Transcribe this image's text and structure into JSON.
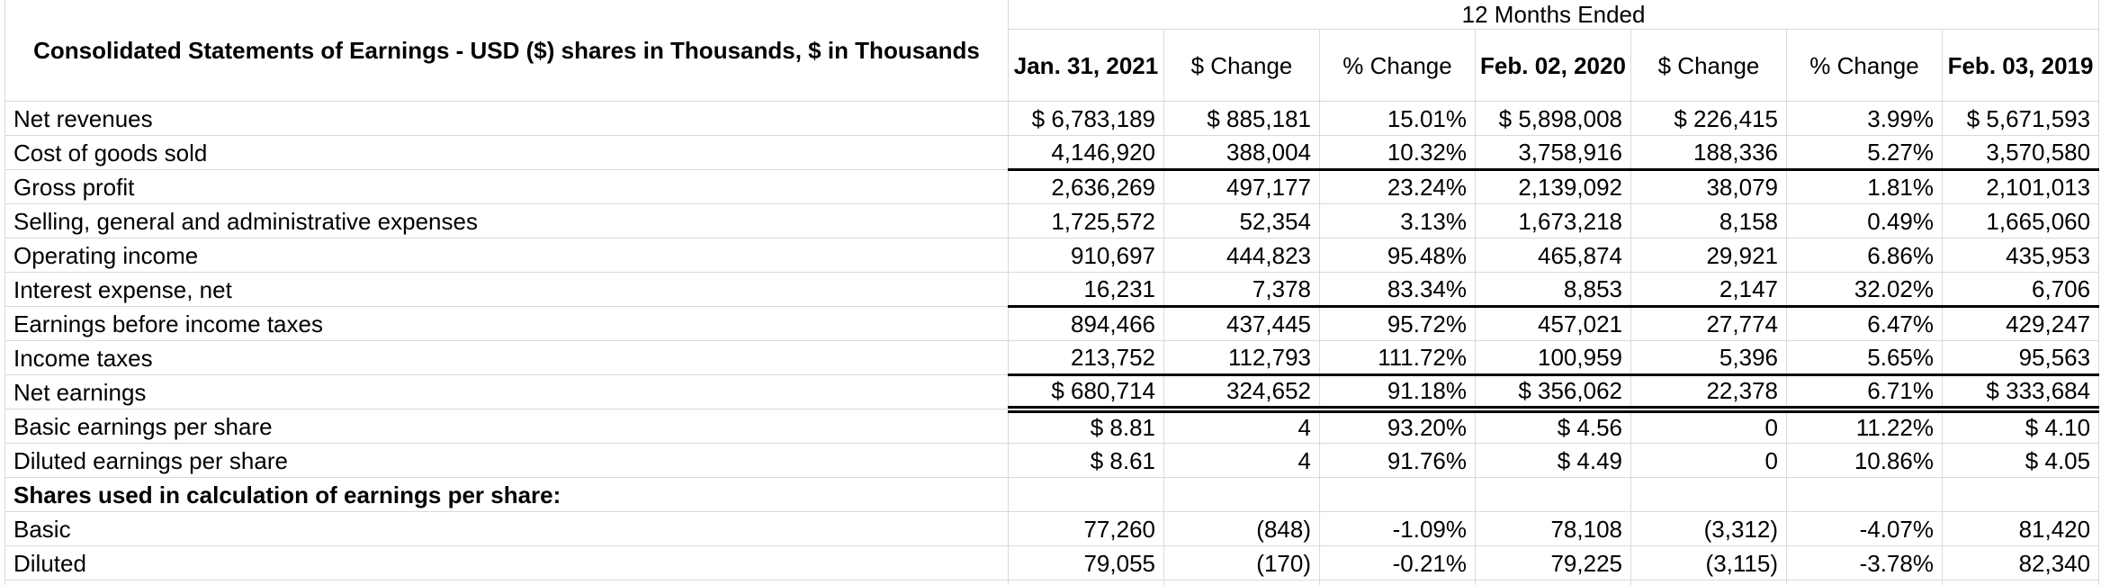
{
  "table": {
    "title": "Consolidated Statements of Earnings - USD ($) shares in Thousands, $ in Thousands",
    "period_header": "12 Months Ended",
    "columns": [
      "Jan. 31, 2021",
      "$ Change",
      "% Change",
      "Feb. 02,\n2020",
      "$ Change",
      "% Change",
      "Feb. 03,\n2019"
    ],
    "column_bold": [
      true,
      false,
      false,
      true,
      false,
      false,
      true
    ],
    "rows": [
      {
        "label": "Net revenues",
        "style": "normal",
        "values": [
          "$ 6,783,189",
          "$ 885,181",
          "15.01%",
          "$ 5,898,008",
          "$ 226,415",
          "3.99%",
          "$ 5,671,593"
        ]
      },
      {
        "label": "Cost of goods sold",
        "style": "thick-bottom",
        "values": [
          "4,146,920",
          "388,004",
          "10.32%",
          "3,758,916",
          "188,336",
          "5.27%",
          "3,570,580"
        ]
      },
      {
        "label": "Gross profit",
        "style": "normal",
        "values": [
          "2,636,269",
          "497,177",
          "23.24%",
          "2,139,092",
          "38,079",
          "1.81%",
          "2,101,013"
        ]
      },
      {
        "label": "Selling, general and administrative expenses",
        "style": "normal",
        "values": [
          "1,725,572",
          "52,354",
          "3.13%",
          "1,673,218",
          "8,158",
          "0.49%",
          "1,665,060"
        ]
      },
      {
        "label": "Operating income",
        "style": "normal",
        "values": [
          "910,697",
          "444,823",
          "95.48%",
          "465,874",
          "29,921",
          "6.86%",
          "435,953"
        ]
      },
      {
        "label": "Interest expense, net",
        "style": "thick-bottom",
        "values": [
          "16,231",
          "7,378",
          "83.34%",
          "8,853",
          "2,147",
          "32.02%",
          "6,706"
        ]
      },
      {
        "label": "Earnings before income taxes",
        "style": "normal",
        "values": [
          "894,466",
          "437,445",
          "95.72%",
          "457,021",
          "27,774",
          "6.47%",
          "429,247"
        ]
      },
      {
        "label": "Income taxes",
        "style": "thick-bottom",
        "values": [
          "213,752",
          "112,793",
          "111.72%",
          "100,959",
          "5,396",
          "5.65%",
          "95,563"
        ]
      },
      {
        "label": "Net earnings",
        "style": "double-bottom",
        "values": [
          "$ 680,714",
          "324,652",
          "91.18%",
          "$ 356,062",
          "22,378",
          "6.71%",
          "$ 333,684"
        ]
      },
      {
        "label": "Basic earnings per share",
        "style": "normal",
        "values": [
          "$ 8.81",
          "4",
          "93.20%",
          "$ 4.56",
          "0",
          "11.22%",
          "$ 4.10"
        ]
      },
      {
        "label": "Diluted earnings per share",
        "style": "normal",
        "values": [
          "$ 8.61",
          "4",
          "91.76%",
          "$ 4.49",
          "0",
          "10.86%",
          "$ 4.05"
        ]
      },
      {
        "label": "Shares used in calculation of earnings per share:",
        "style": "section-header",
        "values": [
          "",
          "",
          "",
          "",
          "",
          "",
          ""
        ]
      },
      {
        "label": "Basic",
        "style": "normal",
        "values": [
          "77,260",
          "(848)",
          "-1.09%",
          "78,108",
          "(3,312)",
          "-4.07%",
          "81,420"
        ]
      },
      {
        "label": "Diluted",
        "style": "normal",
        "values": [
          "79,055",
          "(170)",
          "-0.21%",
          "79,225",
          "(3,115)",
          "-3.78%",
          "82,340"
        ]
      }
    ],
    "colors": {
      "grid": "#d9d9d9",
      "rule": "#000000",
      "text": "#000000",
      "background": "#ffffff"
    }
  }
}
